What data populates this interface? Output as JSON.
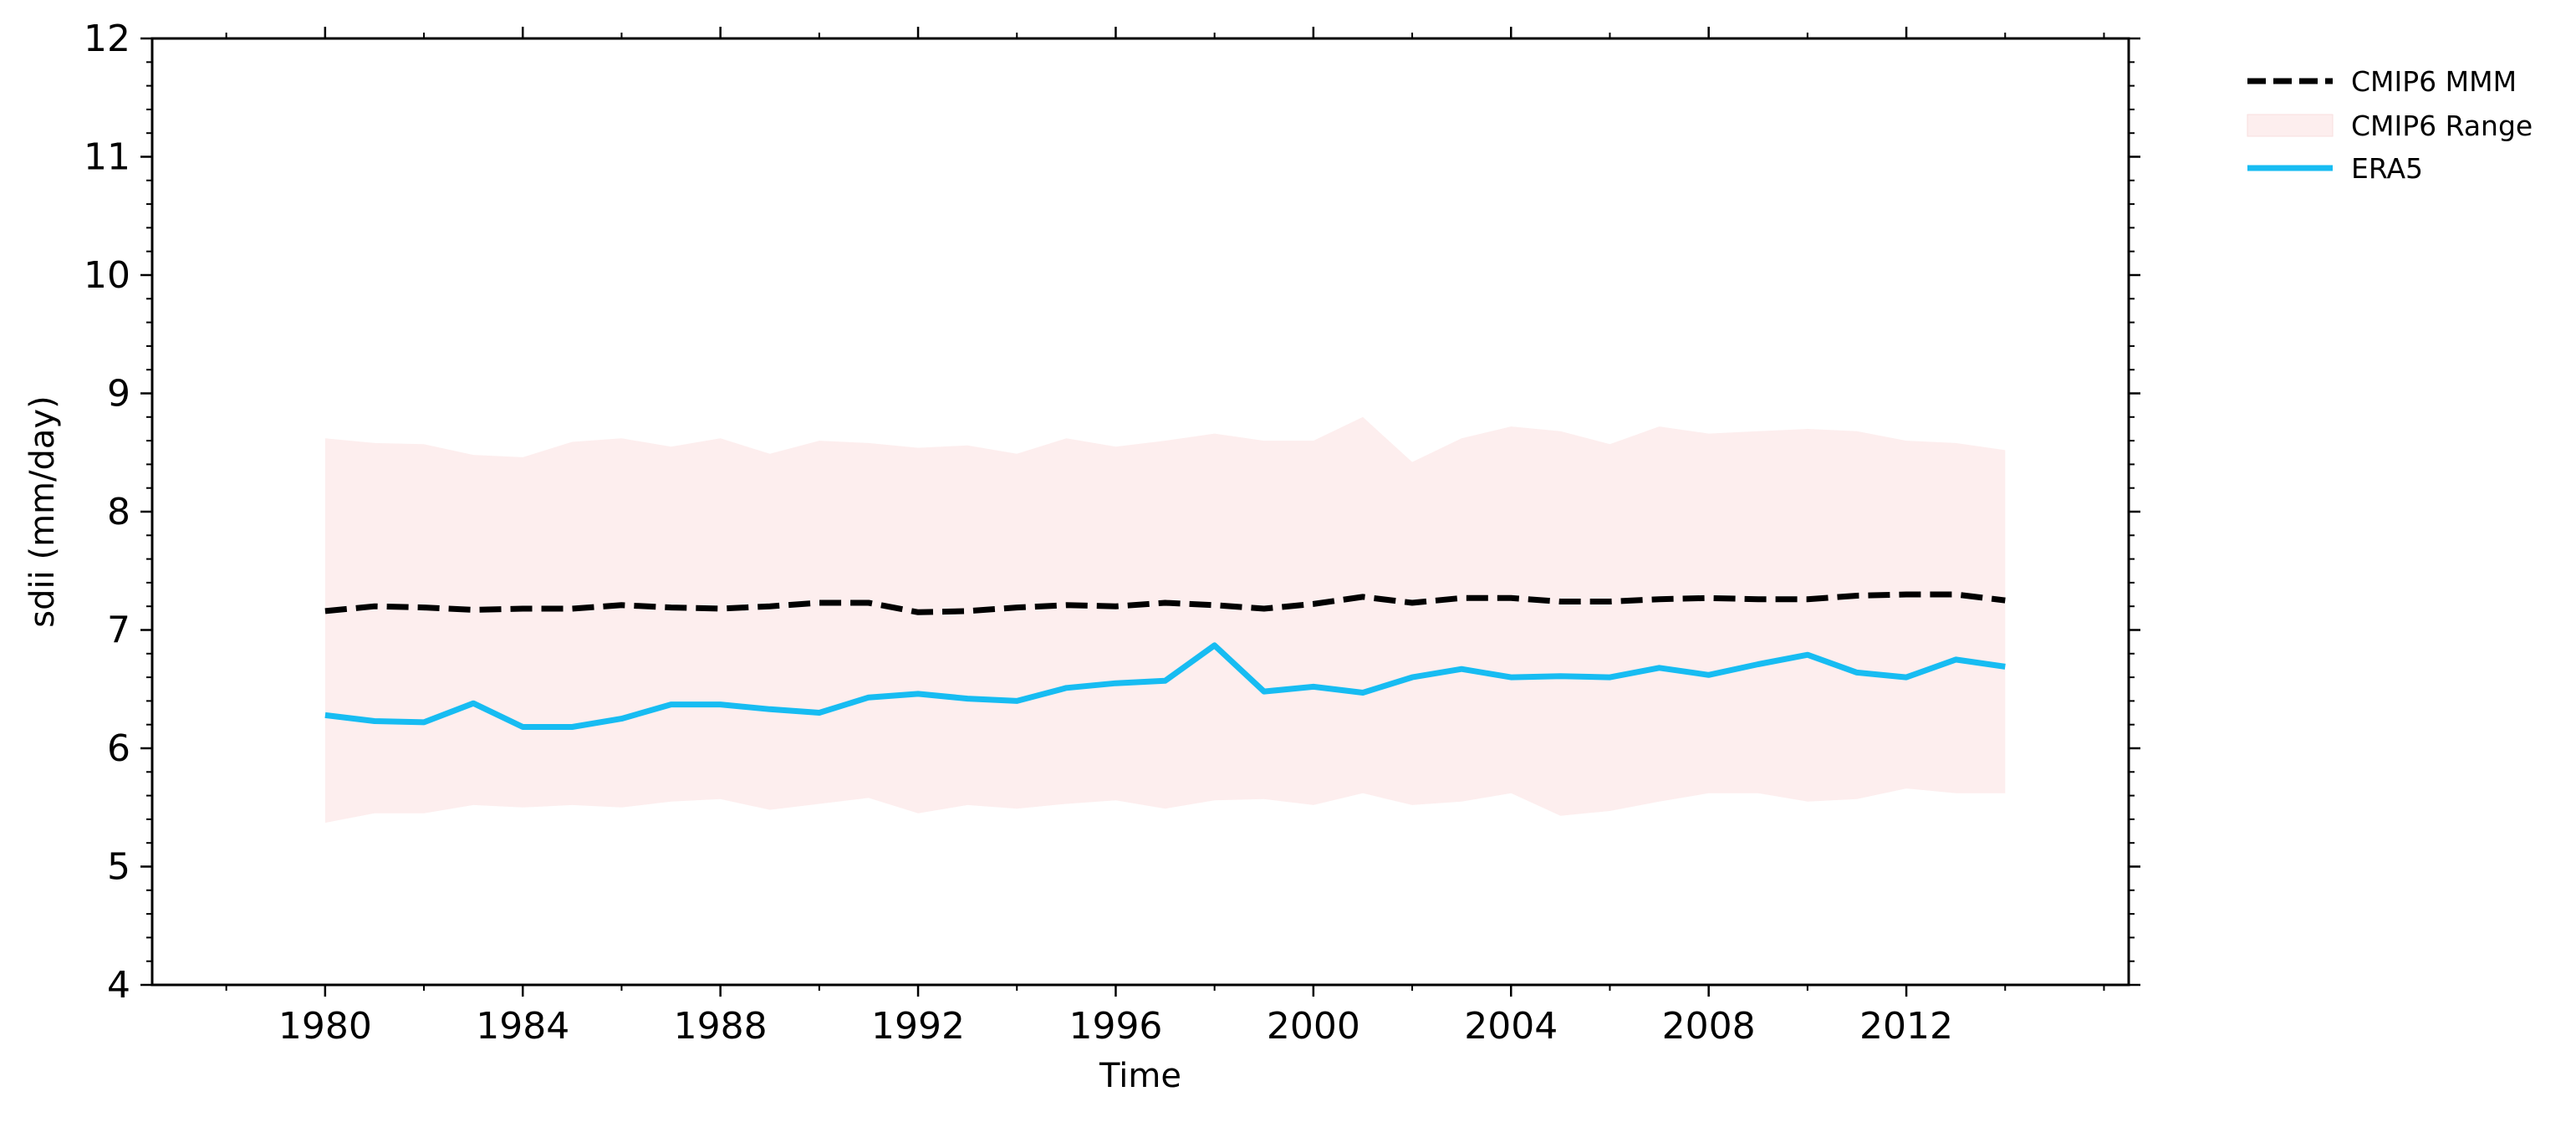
{
  "chart_data": {
    "type": "line",
    "xlabel": "Time",
    "ylabel": "sdii (mm/day)",
    "xlim": [
      1976.5,
      2016.5
    ],
    "ylim": [
      4,
      12
    ],
    "x_ticks": [
      1980,
      1984,
      1988,
      1992,
      1996,
      2000,
      2004,
      2008,
      2012
    ],
    "y_ticks": [
      4,
      5,
      6,
      7,
      8,
      9,
      10,
      11,
      12
    ],
    "grid": false,
    "legend_position": "outside-top-right",
    "x": [
      1980,
      1981,
      1982,
      1983,
      1984,
      1985,
      1986,
      1987,
      1988,
      1989,
      1990,
      1991,
      1992,
      1993,
      1994,
      1995,
      1996,
      1997,
      1998,
      1999,
      2000,
      2001,
      2002,
      2003,
      2004,
      2005,
      2006,
      2007,
      2008,
      2009,
      2010,
      2011,
      2012,
      2013,
      2014
    ],
    "band": {
      "name": "CMIP6 Range",
      "color": "#fdeeee",
      "upper": [
        8.62,
        8.58,
        8.57,
        8.48,
        8.46,
        8.59,
        8.62,
        8.55,
        8.62,
        8.49,
        8.6,
        8.58,
        8.54,
        8.56,
        8.49,
        8.62,
        8.55,
        8.6,
        8.66,
        8.6,
        8.6,
        8.8,
        8.42,
        8.62,
        8.72,
        8.68,
        8.57,
        8.72,
        8.66,
        8.68,
        8.7,
        8.68,
        8.6,
        8.58,
        8.52
      ],
      "lower": [
        5.37,
        5.45,
        5.45,
        5.52,
        5.5,
        5.52,
        5.5,
        5.55,
        5.57,
        5.48,
        5.53,
        5.58,
        5.45,
        5.52,
        5.49,
        5.53,
        5.56,
        5.49,
        5.56,
        5.57,
        5.52,
        5.62,
        5.52,
        5.55,
        5.62,
        5.43,
        5.47,
        5.55,
        5.62,
        5.62,
        5.55,
        5.57,
        5.66,
        5.62,
        5.62
      ]
    },
    "series": [
      {
        "name": "CMIP6 MMM",
        "color": "#000000",
        "style": "dashed",
        "values": [
          7.16,
          7.2,
          7.19,
          7.17,
          7.18,
          7.18,
          7.21,
          7.19,
          7.18,
          7.2,
          7.23,
          7.23,
          7.15,
          7.16,
          7.19,
          7.21,
          7.2,
          7.23,
          7.21,
          7.18,
          7.22,
          7.28,
          7.23,
          7.27,
          7.27,
          7.24,
          7.24,
          7.26,
          7.27,
          7.26,
          7.26,
          7.29,
          7.3,
          7.3,
          7.25
        ]
      },
      {
        "name": "ERA5",
        "color": "#17bcf2",
        "style": "solid",
        "values": [
          6.28,
          6.23,
          6.22,
          6.38,
          6.18,
          6.18,
          6.25,
          6.37,
          6.37,
          6.33,
          6.3,
          6.43,
          6.46,
          6.42,
          6.4,
          6.51,
          6.55,
          6.57,
          6.87,
          6.48,
          6.52,
          6.47,
          6.6,
          6.67,
          6.6,
          6.61,
          6.6,
          6.68,
          6.62,
          6.71,
          6.79,
          6.64,
          6.6,
          6.75,
          6.69
        ]
      }
    ]
  }
}
